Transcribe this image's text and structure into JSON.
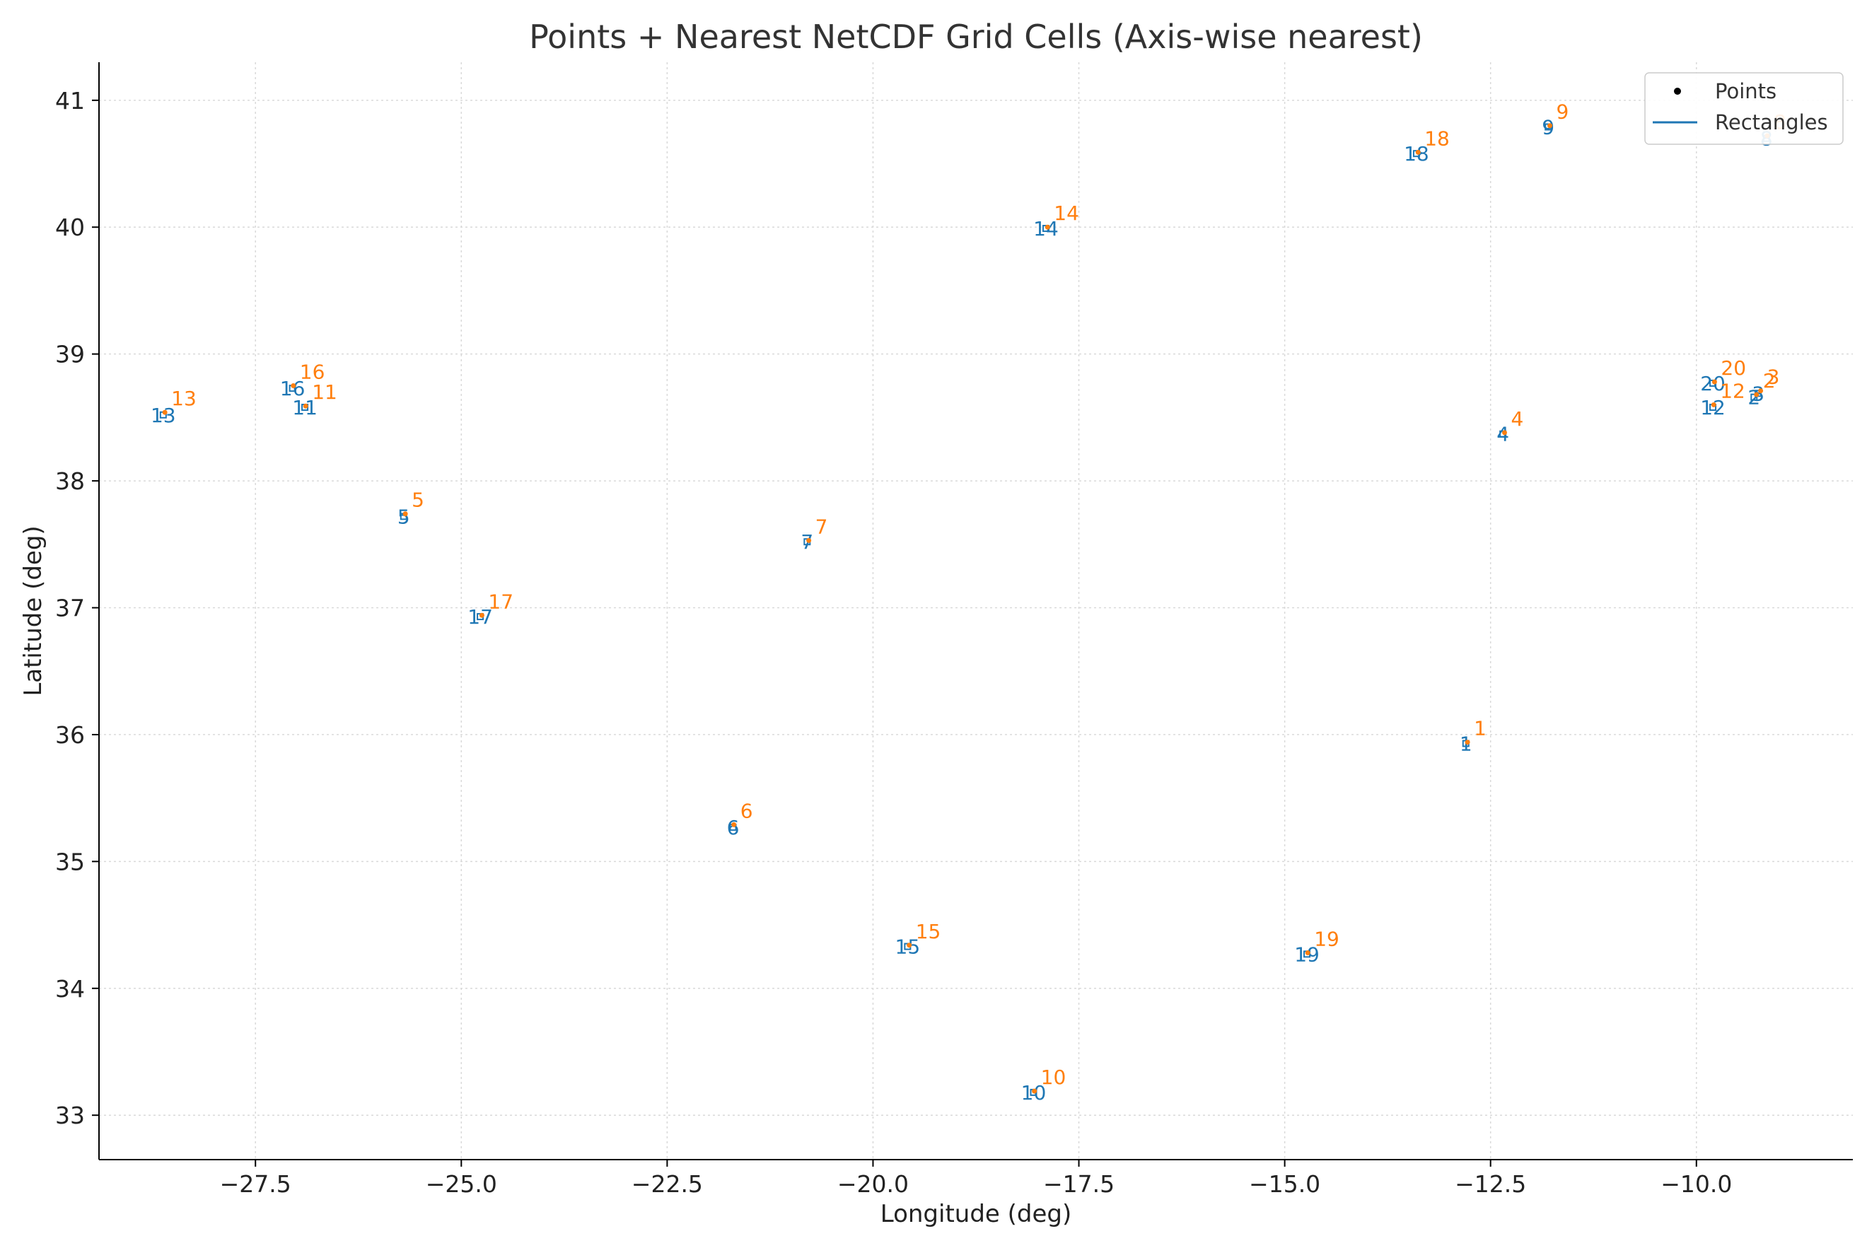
{
  "chart_data": {
    "type": "scatter",
    "title": "Points + Nearest NetCDF Grid Cells (Axis-wise nearest)",
    "xlabel": "Longitude (deg)",
    "ylabel": "Latitude (deg)",
    "xlim": [
      -29.4,
      -8.1
    ],
    "ylim": [
      32.65,
      41.3
    ],
    "xticks": [
      -27.5,
      -25.0,
      -22.5,
      -20.0,
      -17.5,
      -15.0,
      -12.5,
      -10.0
    ],
    "xtick_labels": [
      "−27.5",
      "−25.0",
      "−22.5",
      "−20.0",
      "−17.5",
      "−15.0",
      "−12.5",
      "−10.0"
    ],
    "yticks": [
      33,
      34,
      35,
      36,
      37,
      38,
      39,
      40,
      41
    ],
    "ytick_labels": [
      "33",
      "34",
      "35",
      "36",
      "37",
      "38",
      "39",
      "40",
      "41"
    ],
    "grid": true,
    "legend": {
      "placement": "upper right",
      "entries": [
        {
          "label": "Points",
          "marker": "dot",
          "color": "#000000"
        },
        {
          "label": "Rectangles",
          "marker": "line",
          "color": "#1f77b4"
        }
      ]
    },
    "colors": {
      "point": "#ff7f0e",
      "rectangle": "#1f77b4",
      "grid": "#d9d9d9"
    },
    "series": [
      {
        "name": "Points",
        "points": [
          {
            "id": "1",
            "lon": -12.78,
            "lat": 35.94
          },
          {
            "id": "2",
            "lon": -9.27,
            "lat": 38.68
          },
          {
            "id": "3",
            "lon": -9.22,
            "lat": 38.71
          },
          {
            "id": "4",
            "lon": -12.33,
            "lat": 38.38
          },
          {
            "id": "5",
            "lon": -25.68,
            "lat": 37.74
          },
          {
            "id": "6",
            "lon": -21.69,
            "lat": 35.29
          },
          {
            "id": "7",
            "lon": -20.78,
            "lat": 37.53
          },
          {
            "id": "8",
            "lon": -9.14,
            "lat": 40.72
          },
          {
            "id": "9",
            "lon": -11.78,
            "lat": 40.8
          },
          {
            "id": "10",
            "lon": -18.04,
            "lat": 33.19
          },
          {
            "id": "11",
            "lon": -26.89,
            "lat": 38.59
          },
          {
            "id": "12",
            "lon": -9.79,
            "lat": 38.6
          },
          {
            "id": "13",
            "lon": -28.6,
            "lat": 38.54
          },
          {
            "id": "14",
            "lon": -17.88,
            "lat": 40.0
          },
          {
            "id": "15",
            "lon": -19.56,
            "lat": 34.34
          },
          {
            "id": "16",
            "lon": -27.04,
            "lat": 38.75
          },
          {
            "id": "17",
            "lon": -24.75,
            "lat": 36.94
          },
          {
            "id": "18",
            "lon": -13.38,
            "lat": 40.59
          },
          {
            "id": "19",
            "lon": -14.72,
            "lat": 34.28
          },
          {
            "id": "20",
            "lon": -9.78,
            "lat": 38.78
          }
        ]
      },
      {
        "name": "Rectangles",
        "cells": [
          {
            "id": "1",
            "lon": -12.8,
            "lat": 35.93
          },
          {
            "id": "2",
            "lon": -9.3,
            "lat": 38.66
          },
          {
            "id": "3",
            "lon": -9.25,
            "lat": 38.69
          },
          {
            "id": "4",
            "lon": -12.35,
            "lat": 38.37
          },
          {
            "id": "5",
            "lon": -25.7,
            "lat": 37.72
          },
          {
            "id": "6",
            "lon": -21.7,
            "lat": 35.27
          },
          {
            "id": "7",
            "lon": -20.8,
            "lat": 37.52
          },
          {
            "id": "8",
            "lon": -9.15,
            "lat": 40.7
          },
          {
            "id": "9",
            "lon": -11.8,
            "lat": 40.79
          },
          {
            "id": "10",
            "lon": -18.05,
            "lat": 33.18
          },
          {
            "id": "11",
            "lon": -26.9,
            "lat": 38.58
          },
          {
            "id": "12",
            "lon": -9.8,
            "lat": 38.58
          },
          {
            "id": "13",
            "lon": -28.62,
            "lat": 38.52
          },
          {
            "id": "14",
            "lon": -17.9,
            "lat": 39.99
          },
          {
            "id": "15",
            "lon": -19.58,
            "lat": 34.33
          },
          {
            "id": "16",
            "lon": -27.05,
            "lat": 38.73
          },
          {
            "id": "17",
            "lon": -24.77,
            "lat": 36.93
          },
          {
            "id": "18",
            "lon": -13.4,
            "lat": 40.58
          },
          {
            "id": "19",
            "lon": -14.73,
            "lat": 34.27
          },
          {
            "id": "20",
            "lon": -9.8,
            "lat": 38.77
          }
        ]
      }
    ]
  }
}
